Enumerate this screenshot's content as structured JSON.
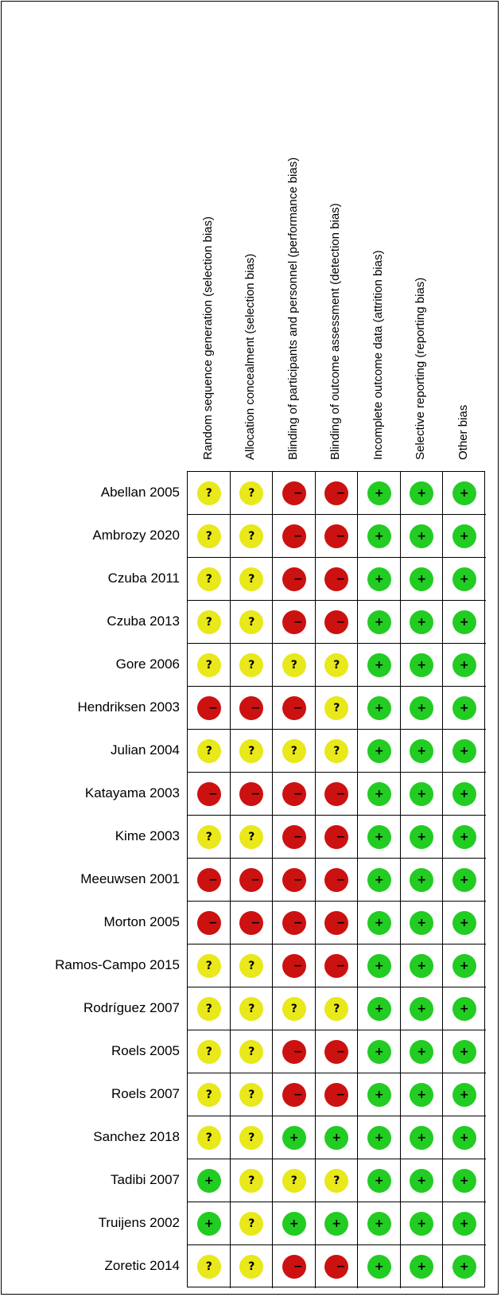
{
  "chart_data": {
    "type": "table",
    "domains": [
      "Random sequence generation (selection bias)",
      "Allocation concealment (selection bias)",
      "Blinding of participants and personnel (performance bias)",
      "Blinding of outcome assessment (detection bias)",
      "Incomplete outcome data (attrition bias)",
      "Selective reporting (reporting bias)",
      "Other bias"
    ],
    "studies": [
      {
        "name": "Abellan 2005",
        "ratings": [
          "unclear",
          "unclear",
          "high",
          "high",
          "low",
          "low",
          "low"
        ]
      },
      {
        "name": "Ambrozy 2020",
        "ratings": [
          "unclear",
          "unclear",
          "high",
          "high",
          "low",
          "low",
          "low"
        ]
      },
      {
        "name": "Czuba 2011",
        "ratings": [
          "unclear",
          "unclear",
          "high",
          "high",
          "low",
          "low",
          "low"
        ]
      },
      {
        "name": "Czuba 2013",
        "ratings": [
          "unclear",
          "unclear",
          "high",
          "high",
          "low",
          "low",
          "low"
        ]
      },
      {
        "name": "Gore 2006",
        "ratings": [
          "unclear",
          "unclear",
          "unclear",
          "unclear",
          "low",
          "low",
          "low"
        ]
      },
      {
        "name": "Hendriksen 2003",
        "ratings": [
          "high",
          "high",
          "high",
          "unclear",
          "low",
          "low",
          "low"
        ]
      },
      {
        "name": "Julian 2004",
        "ratings": [
          "unclear",
          "unclear",
          "unclear",
          "unclear",
          "low",
          "low",
          "low"
        ]
      },
      {
        "name": "Katayama 2003",
        "ratings": [
          "high",
          "high",
          "high",
          "high",
          "low",
          "low",
          "low"
        ]
      },
      {
        "name": "Kime 2003",
        "ratings": [
          "unclear",
          "unclear",
          "high",
          "high",
          "low",
          "low",
          "low"
        ]
      },
      {
        "name": "Meeuwsen 2001",
        "ratings": [
          "high",
          "high",
          "high",
          "high",
          "low",
          "low",
          "low"
        ]
      },
      {
        "name": "Morton 2005",
        "ratings": [
          "high",
          "high",
          "high",
          "high",
          "low",
          "low",
          "low"
        ]
      },
      {
        "name": "Ramos-Campo 2015",
        "ratings": [
          "unclear",
          "unclear",
          "high",
          "high",
          "low",
          "low",
          "low"
        ]
      },
      {
        "name": "Rodríguez 2007",
        "ratings": [
          "unclear",
          "unclear",
          "unclear",
          "unclear",
          "low",
          "low",
          "low"
        ]
      },
      {
        "name": "Roels 2005",
        "ratings": [
          "unclear",
          "unclear",
          "high",
          "high",
          "low",
          "low",
          "low"
        ]
      },
      {
        "name": "Roels 2007",
        "ratings": [
          "unclear",
          "unclear",
          "high",
          "high",
          "low",
          "low",
          "low"
        ]
      },
      {
        "name": "Sanchez 2018",
        "ratings": [
          "unclear",
          "unclear",
          "low",
          "low",
          "low",
          "low",
          "low"
        ]
      },
      {
        "name": "Tadibi 2007",
        "ratings": [
          "low",
          "unclear",
          "unclear",
          "unclear",
          "low",
          "low",
          "low"
        ]
      },
      {
        "name": "Truijens 2002",
        "ratings": [
          "low",
          "unclear",
          "low",
          "low",
          "low",
          "low",
          "low"
        ]
      },
      {
        "name": "Zoretic 2014",
        "ratings": [
          "unclear",
          "unclear",
          "high",
          "high",
          "low",
          "low",
          "low"
        ]
      }
    ],
    "symbols": {
      "low": "+",
      "unclear": "?",
      "high": "−"
    },
    "colors": {
      "low": "#22cc22",
      "unclear": "#e8e81a",
      "high": "#cc1111"
    }
  }
}
